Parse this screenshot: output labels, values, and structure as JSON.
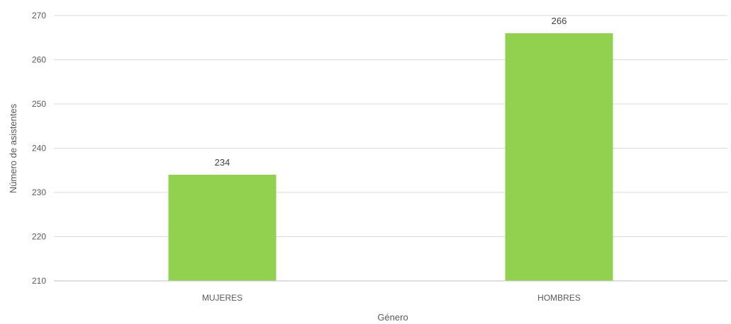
{
  "chart_data": {
    "type": "bar",
    "categories": [
      "MUJERES",
      "HOMBRES"
    ],
    "values": [
      234,
      266
    ],
    "data_labels": [
      "234",
      "266"
    ],
    "xlabel": "Género",
    "ylabel": "Número de asistentes",
    "ylim": [
      210,
      270
    ],
    "yticks": [
      210,
      220,
      230,
      240,
      250,
      260,
      270
    ],
    "grid": true,
    "legend": "none",
    "bar_color": "#92d050",
    "gridline_color": "#d9d9d9"
  }
}
